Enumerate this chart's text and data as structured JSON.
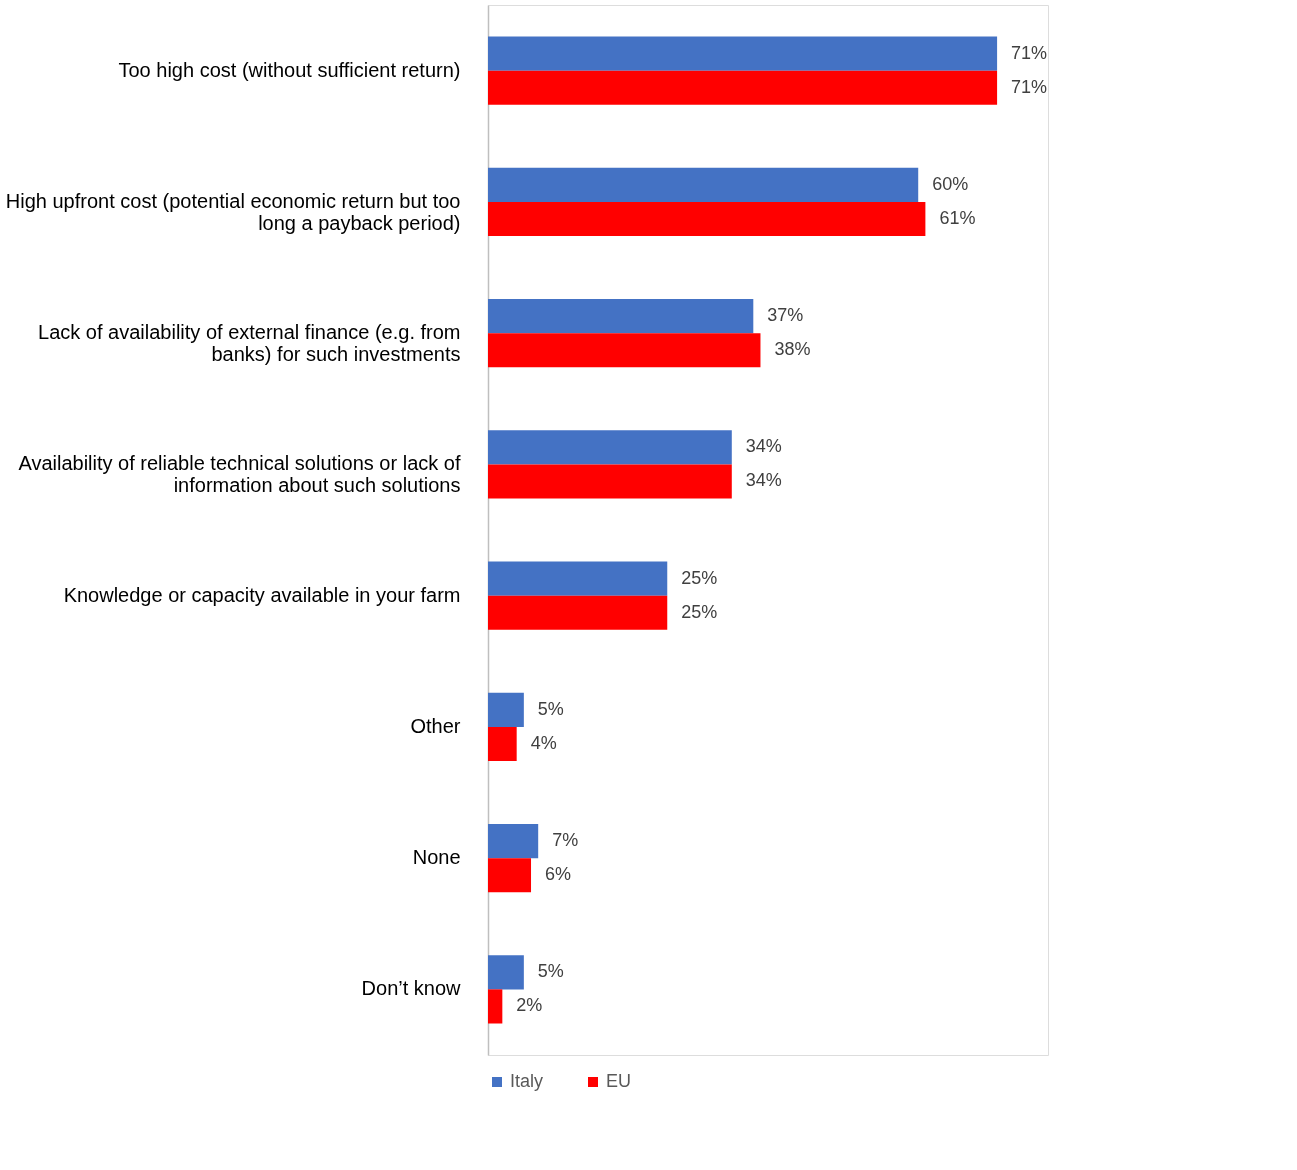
{
  "chart_data": {
    "type": "bar",
    "orientation": "horizontal",
    "categories": [
      "Too high cost (without sufficient return)",
      "High upfront cost (potential economic return but too long a payback period)",
      "Lack of availability of external finance (e.g. from banks) for such investments",
      "Availability of reliable technical solutions or lack of information about such solutions",
      "Knowledge or capacity available in your farm",
      "Other",
      "None",
      "Don’t know"
    ],
    "series": [
      {
        "name": "Italy",
        "color": "#4472c4",
        "values": [
          71,
          60,
          37,
          34,
          25,
          5,
          7,
          5
        ],
        "value_labels": [
          "71%",
          "60%",
          "37%",
          "34%",
          "25%",
          "5%",
          "7%",
          "5%"
        ]
      },
      {
        "name": "EU",
        "color": "#ff0000",
        "values": [
          71,
          61,
          38,
          34,
          25,
          4,
          6,
          2
        ],
        "value_labels": [
          "71%",
          "61%",
          "38%",
          "34%",
          "25%",
          "4%",
          "6%",
          "2%"
        ]
      }
    ],
    "legend": "bottom"
  }
}
